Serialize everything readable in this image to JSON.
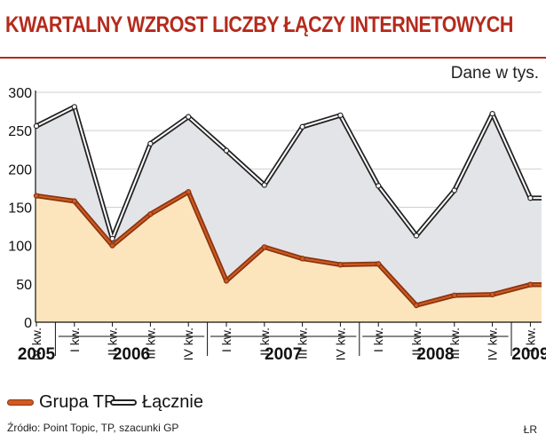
{
  "title": "KWARTALNY WZROST LICZBY ŁĄCZY INTERNETOWYCH",
  "unit_note": "Dane w tys.",
  "legend": {
    "series1": "Grupa TP",
    "series2": "Łącznie"
  },
  "source": "Źródło: Point Topic, TP, szacunki GP",
  "credit": "ŁR",
  "colors": {
    "title": "#b52a1c",
    "tp_line": "#d15a21",
    "tp_fill": "#fce5bd",
    "total_line": "#222222",
    "total_fill": "#e3e4e8"
  },
  "chart_data": {
    "type": "area",
    "categories": [
      "IV kw.",
      "I kw.",
      "II kw.",
      "III kw.",
      "IV kw.",
      "I kw.",
      "II kw.",
      "III kw.",
      "IV kw.",
      "I kw.",
      "II kw.",
      "III kw.",
      "IV kw.",
      "I kw."
    ],
    "years": [
      {
        "label": "2005",
        "from": 0,
        "to": 0
      },
      {
        "label": "2006",
        "from": 1,
        "to": 4
      },
      {
        "label": "2007",
        "from": 5,
        "to": 8
      },
      {
        "label": "2008",
        "from": 9,
        "to": 12
      },
      {
        "label": "2009",
        "from": 13,
        "to": 13
      }
    ],
    "series": [
      {
        "name": "Grupa TP",
        "values": [
          165,
          158,
          100,
          141,
          170,
          54,
          98,
          83,
          75,
          76,
          22,
          35,
          36,
          49
        ]
      },
      {
        "name": "Łącznie",
        "values": [
          256,
          281,
          109,
          233,
          268,
          224,
          179,
          255,
          270,
          178,
          113,
          172,
          272,
          162
        ]
      }
    ],
    "ylim": [
      0,
      300
    ],
    "yticks": [
      0,
      50,
      100,
      150,
      200,
      250,
      300
    ],
    "grid": true,
    "legend_position": "bottom-left"
  }
}
